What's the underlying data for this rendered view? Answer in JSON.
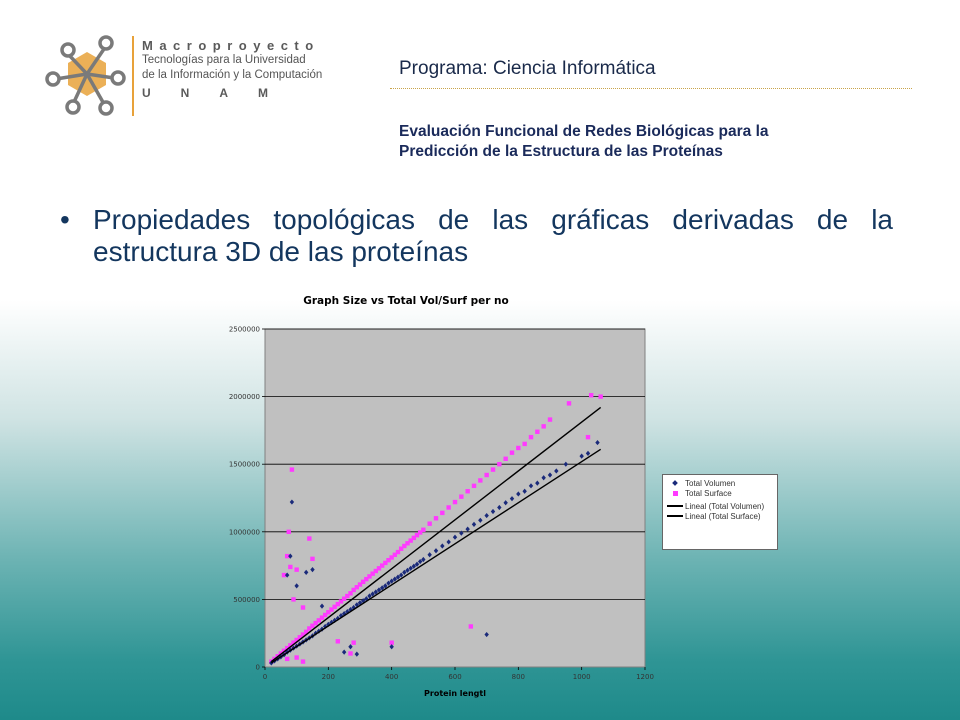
{
  "header": {
    "logo": {
      "title": "Macroproyecto",
      "line1": "Tecnologías para la Universidad",
      "line2": "de la Información y la Computación",
      "unam": "UNAM"
    },
    "program": "Programa: Ciencia Informática",
    "evaluation_line1": "Evaluación Funcional de Redes Biológicas para la",
    "evaluation_line2": "Predicción de la Estructura de las Proteínas"
  },
  "bullet": {
    "symbol": "•",
    "text": "Propiedades topológicas de las gráficas derivadas de la estructura 3D de las proteínas"
  },
  "colors": {
    "volumen": "#1a2a7a",
    "surface": "#ff3aff",
    "plot_bg": "#c0c0c0",
    "trend": "#000000"
  },
  "chart_data": {
    "type": "scatter",
    "title": "Graph Size vs Total Vol/Surf per no",
    "xlabel": "Protein lengtl",
    "ylabel": "",
    "xlim": [
      0,
      1200
    ],
    "ylim": [
      0,
      2500000
    ],
    "x_ticks": [
      0,
      200,
      400,
      600,
      800,
      1000,
      1200
    ],
    "y_ticks": [
      0,
      500000,
      1000000,
      1500000,
      2000000,
      2500000
    ],
    "grid": "horizontal",
    "legend_position": "right",
    "series": [
      {
        "name": "Total Volumen",
        "marker": "diamond",
        "color": "#1a2a7a",
        "points": [
          [
            20,
            30000
          ],
          [
            30,
            45000
          ],
          [
            40,
            60000
          ],
          [
            50,
            75000
          ],
          [
            60,
            90000
          ],
          [
            70,
            110000
          ],
          [
            80,
            125000
          ],
          [
            90,
            140000
          ],
          [
            100,
            155000
          ],
          [
            110,
            170000
          ],
          [
            120,
            185000
          ],
          [
            130,
            200000
          ],
          [
            140,
            215000
          ],
          [
            150,
            230000
          ],
          [
            160,
            250000
          ],
          [
            170,
            265000
          ],
          [
            180,
            280000
          ],
          [
            190,
            300000
          ],
          [
            200,
            315000
          ],
          [
            210,
            330000
          ],
          [
            220,
            345000
          ],
          [
            230,
            360000
          ],
          [
            240,
            380000
          ],
          [
            250,
            395000
          ],
          [
            260,
            410000
          ],
          [
            270,
            425000
          ],
          [
            280,
            440000
          ],
          [
            290,
            460000
          ],
          [
            300,
            475000
          ],
          [
            310,
            490000
          ],
          [
            320,
            505000
          ],
          [
            330,
            525000
          ],
          [
            340,
            540000
          ],
          [
            350,
            555000
          ],
          [
            360,
            570000
          ],
          [
            370,
            585000
          ],
          [
            380,
            600000
          ],
          [
            390,
            620000
          ],
          [
            400,
            635000
          ],
          [
            410,
            650000
          ],
          [
            420,
            665000
          ],
          [
            430,
            680000
          ],
          [
            440,
            700000
          ],
          [
            450,
            715000
          ],
          [
            460,
            730000
          ],
          [
            470,
            745000
          ],
          [
            480,
            760000
          ],
          [
            490,
            780000
          ],
          [
            500,
            795000
          ],
          [
            520,
            830000
          ],
          [
            540,
            860000
          ],
          [
            560,
            895000
          ],
          [
            580,
            925000
          ],
          [
            600,
            960000
          ],
          [
            620,
            990000
          ],
          [
            640,
            1020000
          ],
          [
            660,
            1055000
          ],
          [
            680,
            1085000
          ],
          [
            700,
            1120000
          ],
          [
            720,
            1150000
          ],
          [
            740,
            1180000
          ],
          [
            760,
            1215000
          ],
          [
            780,
            1245000
          ],
          [
            800,
            1280000
          ],
          [
            820,
            1300000
          ],
          [
            840,
            1340000
          ],
          [
            860,
            1360000
          ],
          [
            880,
            1400000
          ],
          [
            900,
            1420000
          ],
          [
            920,
            1450000
          ],
          [
            950,
            1500000
          ],
          [
            1000,
            1560000
          ],
          [
            1020,
            1580000
          ],
          [
            1050,
            1660000
          ],
          [
            85,
            1220000
          ],
          [
            80,
            820000
          ],
          [
            70,
            680000
          ],
          [
            100,
            600000
          ],
          [
            130,
            700000
          ],
          [
            150,
            720000
          ],
          [
            180,
            450000
          ],
          [
            250,
            110000
          ],
          [
            270,
            150000
          ],
          [
            400,
            150000
          ],
          [
            700,
            240000
          ],
          [
            290,
            95000
          ]
        ]
      },
      {
        "name": "Total Surface",
        "marker": "square",
        "color": "#ff3aff",
        "points": [
          [
            20,
            40000
          ],
          [
            30,
            60000
          ],
          [
            40,
            80000
          ],
          [
            50,
            100000
          ],
          [
            60,
            120000
          ],
          [
            70,
            140000
          ],
          [
            80,
            160000
          ],
          [
            90,
            180000
          ],
          [
            100,
            200000
          ],
          [
            110,
            220000
          ],
          [
            120,
            240000
          ],
          [
            130,
            260000
          ],
          [
            140,
            285000
          ],
          [
            150,
            305000
          ],
          [
            160,
            325000
          ],
          [
            170,
            345000
          ],
          [
            180,
            365000
          ],
          [
            190,
            385000
          ],
          [
            200,
            405000
          ],
          [
            210,
            425000
          ],
          [
            220,
            445000
          ],
          [
            230,
            465000
          ],
          [
            240,
            485000
          ],
          [
            250,
            505000
          ],
          [
            260,
            525000
          ],
          [
            270,
            545000
          ],
          [
            280,
            570000
          ],
          [
            290,
            590000
          ],
          [
            300,
            610000
          ],
          [
            310,
            630000
          ],
          [
            320,
            650000
          ],
          [
            330,
            670000
          ],
          [
            340,
            690000
          ],
          [
            350,
            710000
          ],
          [
            360,
            730000
          ],
          [
            370,
            750000
          ],
          [
            380,
            770000
          ],
          [
            390,
            790000
          ],
          [
            400,
            810000
          ],
          [
            410,
            830000
          ],
          [
            420,
            850000
          ],
          [
            430,
            875000
          ],
          [
            440,
            895000
          ],
          [
            450,
            915000
          ],
          [
            460,
            935000
          ],
          [
            470,
            955000
          ],
          [
            480,
            975000
          ],
          [
            490,
            995000
          ],
          [
            500,
            1015000
          ],
          [
            520,
            1060000
          ],
          [
            540,
            1100000
          ],
          [
            560,
            1140000
          ],
          [
            580,
            1180000
          ],
          [
            600,
            1220000
          ],
          [
            620,
            1260000
          ],
          [
            640,
            1300000
          ],
          [
            660,
            1340000
          ],
          [
            680,
            1380000
          ],
          [
            700,
            1420000
          ],
          [
            720,
            1460000
          ],
          [
            740,
            1500000
          ],
          [
            760,
            1540000
          ],
          [
            780,
            1585000
          ],
          [
            800,
            1620000
          ],
          [
            820,
            1650000
          ],
          [
            840,
            1700000
          ],
          [
            860,
            1740000
          ],
          [
            880,
            1780000
          ],
          [
            900,
            1830000
          ],
          [
            960,
            1950000
          ],
          [
            1020,
            1700000
          ],
          [
            1030,
            2010000
          ],
          [
            1060,
            2000000
          ],
          [
            85,
            1460000
          ],
          [
            75,
            1000000
          ],
          [
            70,
            820000
          ],
          [
            80,
            740000
          ],
          [
            140,
            950000
          ],
          [
            150,
            800000
          ],
          [
            100,
            720000
          ],
          [
            60,
            680000
          ],
          [
            90,
            500000
          ],
          [
            120,
            440000
          ],
          [
            230,
            190000
          ],
          [
            280,
            180000
          ],
          [
            270,
            100000
          ],
          [
            400,
            180000
          ],
          [
            650,
            300000
          ],
          [
            70,
            60000
          ],
          [
            100,
            70000
          ],
          [
            120,
            40000
          ]
        ]
      }
    ],
    "trendlines": [
      {
        "name": "Lineal (Total Volumen)",
        "from": [
          20,
          30000
        ],
        "to": [
          1060,
          1610000
        ]
      },
      {
        "name": "Lineal (Total Surface)",
        "from": [
          20,
          40000
        ],
        "to": [
          1060,
          1920000
        ]
      }
    ]
  }
}
